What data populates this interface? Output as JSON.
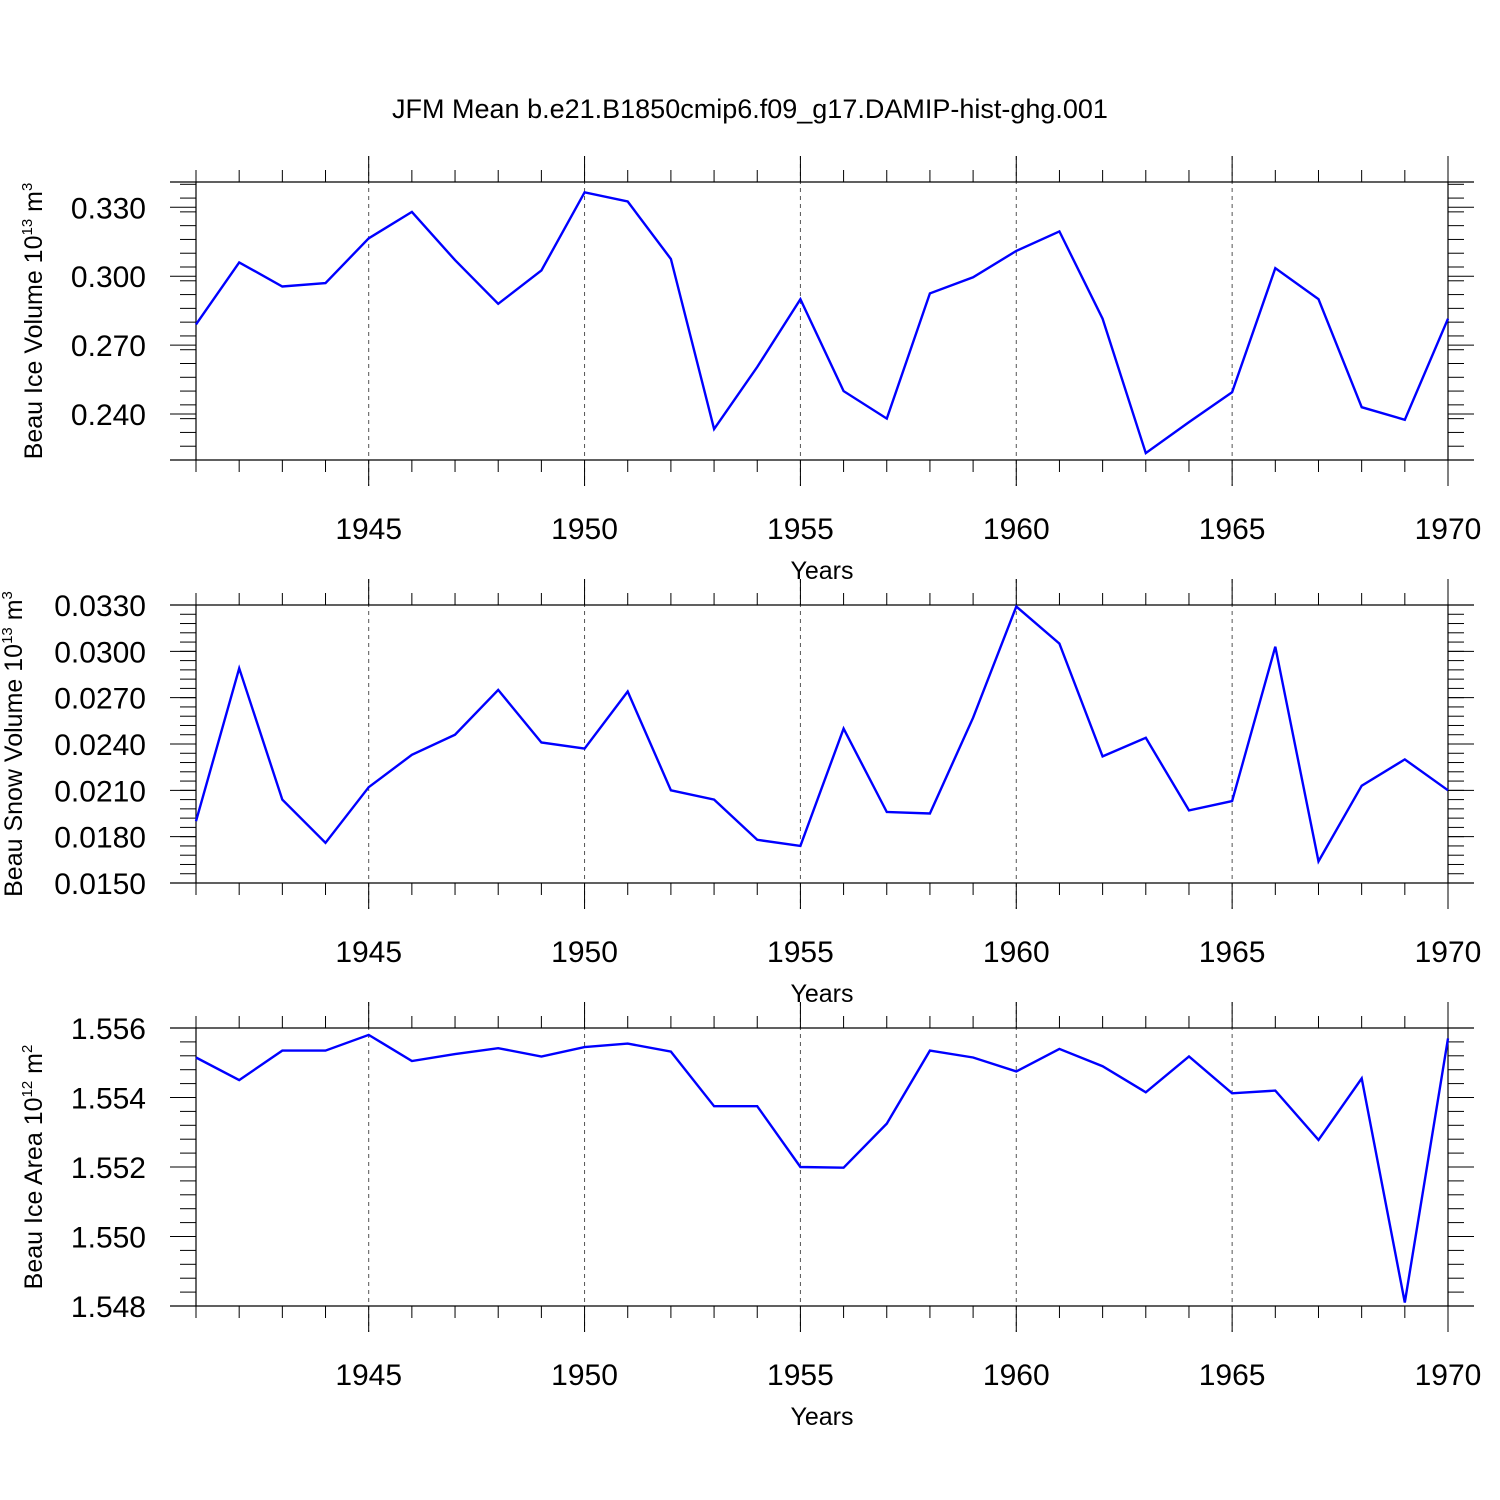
{
  "title": "JFM Mean b.e21.B1850cmip6.f09_g17.DAMIP-hist-ghg.001",
  "chart_data": [
    {
      "type": "line",
      "ylabel_main": "Beau Ice Volume 10",
      "ylabel_sup": "13",
      "ylabel_unit": "m",
      "ylabel_unit_sup": "3",
      "xlabel": "Years",
      "x": [
        1941,
        1942,
        1943,
        1944,
        1945,
        1946,
        1947,
        1948,
        1949,
        1950,
        1951,
        1952,
        1953,
        1954,
        1955,
        1956,
        1957,
        1958,
        1959,
        1960,
        1961,
        1962,
        1963,
        1964,
        1965,
        1966,
        1967,
        1968,
        1969,
        1970
      ],
      "values": [
        0.279,
        0.306,
        0.2955,
        0.297,
        0.3165,
        0.328,
        0.307,
        0.288,
        0.3025,
        0.3365,
        0.3325,
        0.3075,
        0.2335,
        0.2605,
        0.29,
        0.25,
        0.238,
        0.2925,
        0.2995,
        0.311,
        0.3195,
        0.2815,
        0.223,
        0.2365,
        0.2495,
        0.3035,
        0.29,
        0.243,
        0.2375,
        0.2815
      ],
      "xlim": [
        1941,
        1970
      ],
      "ylim": [
        0.22,
        0.341
      ],
      "xticks": [
        1945,
        1950,
        1955,
        1960,
        1965,
        1970
      ],
      "xtick_labels": [
        "1945",
        "1950",
        "1955",
        "1960",
        "1965",
        "1970"
      ],
      "yticks": [
        0.24,
        0.27,
        0.3,
        0.33
      ],
      "ytick_labels": [
        "0.240",
        "0.270",
        "0.300",
        "0.330"
      ],
      "minor_y_step": 0.006,
      "grid": "vertical dashed at major x ticks",
      "series_color": "#0000ff"
    },
    {
      "type": "line",
      "ylabel_main": "Beau Snow Volume 10",
      "ylabel_sup": "13",
      "ylabel_unit": "m",
      "ylabel_unit_sup": "3",
      "xlabel": "Years",
      "x": [
        1941,
        1942,
        1943,
        1944,
        1945,
        1946,
        1947,
        1948,
        1949,
        1950,
        1951,
        1952,
        1953,
        1954,
        1955,
        1956,
        1957,
        1958,
        1959,
        1960,
        1961,
        1962,
        1963,
        1964,
        1965,
        1966,
        1967,
        1968,
        1969,
        1970
      ],
      "values": [
        0.019,
        0.0289,
        0.0204,
        0.0176,
        0.0212,
        0.0233,
        0.0246,
        0.0275,
        0.0241,
        0.0237,
        0.0274,
        0.021,
        0.0204,
        0.0178,
        0.0174,
        0.025,
        0.0196,
        0.0195,
        0.0257,
        0.0329,
        0.0305,
        0.0232,
        0.0244,
        0.0197,
        0.0203,
        0.0303,
        0.0164,
        0.0213,
        0.023,
        0.021
      ],
      "xlim": [
        1941,
        1970
      ],
      "ylim": [
        0.015,
        0.033
      ],
      "xticks": [
        1945,
        1950,
        1955,
        1960,
        1965,
        1970
      ],
      "xtick_labels": [
        "1945",
        "1950",
        "1955",
        "1960",
        "1965",
        "1970"
      ],
      "yticks": [
        0.015,
        0.018,
        0.021,
        0.024,
        0.027,
        0.03,
        0.033
      ],
      "ytick_labels": [
        "0.0150",
        "0.0180",
        "0.0210",
        "0.0240",
        "0.0270",
        "0.0300",
        "0.0330"
      ],
      "minor_y_step": 0.0006,
      "grid": "vertical dashed at major x ticks",
      "series_color": "#0000ff"
    },
    {
      "type": "line",
      "ylabel_main": "Beau Ice Area 10",
      "ylabel_sup": "12",
      "ylabel_unit": "m",
      "ylabel_unit_sup": "2",
      "xlabel": "Years",
      "x": [
        1941,
        1942,
        1943,
        1944,
        1945,
        1946,
        1947,
        1948,
        1949,
        1950,
        1951,
        1952,
        1953,
        1954,
        1955,
        1956,
        1957,
        1958,
        1959,
        1960,
        1961,
        1962,
        1963,
        1964,
        1965,
        1966,
        1967,
        1968,
        1969,
        1970
      ],
      "values": [
        1.55515,
        1.5545,
        1.55535,
        1.55535,
        1.5558,
        1.55505,
        1.55525,
        1.55542,
        1.55518,
        1.55545,
        1.55555,
        1.55532,
        1.55375,
        1.55375,
        1.552,
        1.55198,
        1.55325,
        1.55535,
        1.55515,
        1.55475,
        1.5554,
        1.5549,
        1.55415,
        1.55518,
        1.55412,
        1.5542,
        1.55278,
        1.55455,
        1.5481,
        1.5557
      ],
      "xlim": [
        1941,
        1970
      ],
      "ylim": [
        1.548,
        1.556
      ],
      "xticks": [
        1945,
        1950,
        1955,
        1960,
        1965,
        1970
      ],
      "xtick_labels": [
        "1945",
        "1950",
        "1955",
        "1960",
        "1965",
        "1970"
      ],
      "yticks": [
        1.548,
        1.55,
        1.552,
        1.554,
        1.556
      ],
      "ytick_labels": [
        "1.548",
        "1.550",
        "1.552",
        "1.554",
        "1.556"
      ],
      "minor_y_step": 0.0004,
      "grid": "vertical dashed at major x ticks",
      "series_color": "#0000ff"
    }
  ]
}
